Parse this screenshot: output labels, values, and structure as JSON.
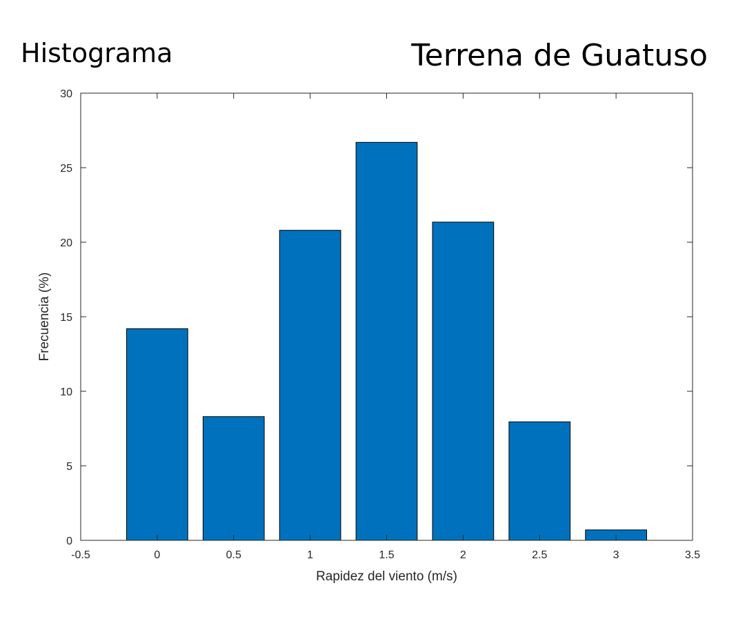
{
  "heading_left": "Histograma",
  "heading_right": "Terrena de Guatuso",
  "chart_data": {
    "type": "bar",
    "title": "",
    "xlabel": "Rapidez del viento (m/s)",
    "ylabel": "Frecuencia (%)",
    "xlim": [
      -0.5,
      3.5
    ],
    "ylim": [
      0,
      30
    ],
    "xticks": [
      -0.5,
      0,
      0.5,
      1,
      1.5,
      2,
      2.5,
      3,
      3.5
    ],
    "xtick_labels": [
      "-0.5",
      "0",
      "0.5",
      "1",
      "1.5",
      "2",
      "2.5",
      "3",
      "3.5"
    ],
    "yticks": [
      0,
      5,
      10,
      15,
      20,
      25,
      30
    ],
    "ytick_labels": [
      "0",
      "5",
      "10",
      "15",
      "20",
      "25",
      "30"
    ],
    "bar_width": 0.4,
    "x": [
      0,
      0.5,
      1,
      1.5,
      2,
      2.5,
      3
    ],
    "values": [
      14.2,
      8.3,
      20.8,
      26.7,
      21.35,
      7.95,
      0.7
    ],
    "grid": false,
    "colors": {
      "bar_fill": "#0072BD",
      "bar_edge": "#000000",
      "axis": "#262626"
    }
  }
}
